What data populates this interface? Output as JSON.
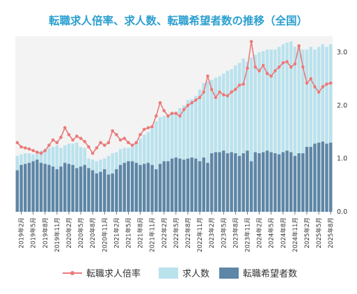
{
  "chart_data": {
    "type": "bar",
    "title": "転職求人倍率、求人数、転職希望者数の推移（全国）",
    "colors": {
      "title": "#2a9fd0",
      "plot_bg": "#f3f3f3",
      "jobs": "#b9e2ed",
      "seekers": "#5e86a6",
      "ratio": "#ea7a7a"
    },
    "y_axis": {
      "range": [
        0,
        3.3
      ],
      "ticks": [
        "0.0",
        "1.0",
        "2.0",
        "3.0"
      ],
      "tick_values": [
        0,
        1,
        2,
        3
      ]
    },
    "grid": false,
    "legend_position": "bottom",
    "x_tick_labels": [
      "2019年2月",
      "2019年5月",
      "2019年8月",
      "2019年11月",
      "2020年2月",
      "2020年5月",
      "2020年8月",
      "2020年11月",
      "2021年2月",
      "2021年5月",
      "2021年8月",
      "2021年11月",
      "2022年2月",
      "2022年5月",
      "2022年8月",
      "2022年11月",
      "2023年2月",
      "2023年5月",
      "2023年8月",
      "2023年11月",
      "2024年2月",
      "2024年5月",
      "2024年8月",
      "2024年11月",
      "2025年2月",
      "2025年5月",
      "2025年8月"
    ],
    "categories": [
      "2019年1月",
      "2019年2月",
      "2019年3月",
      "2019年4月",
      "2019年5月",
      "2019年6月",
      "2019年7月",
      "2019年8月",
      "2019年9月",
      "2019年10月",
      "2019年11月",
      "2019年12月",
      "2020年1月",
      "2020年2月",
      "2020年3月",
      "2020年4月",
      "2020年5月",
      "2020年6月",
      "2020年7月",
      "2020年8月",
      "2020年9月",
      "2020年10月",
      "2020年11月",
      "2020年12月",
      "2021年1月",
      "2021年2月",
      "2021年3月",
      "2021年4月",
      "2021年5月",
      "2021年6月",
      "2021年7月",
      "2021年8月",
      "2021年9月",
      "2021年10月",
      "2021年11月",
      "2021年12月",
      "2022年1月",
      "2022年2月",
      "2022年3月",
      "2022年4月",
      "2022年5月",
      "2022年6月",
      "2022年7月",
      "2022年8月",
      "2022年9月",
      "2022年10月",
      "2022年11月",
      "2022年12月",
      "2023年1月",
      "2023年2月",
      "2023年3月",
      "2023年4月",
      "2023年5月",
      "2023年6月",
      "2023年7月",
      "2023年8月",
      "2023年9月",
      "2023年10月",
      "2023年11月",
      "2023年12月",
      "2024年1月",
      "2024年2月",
      "2024年3月",
      "2024年4月",
      "2024年5月",
      "2024年6月",
      "2024年7月",
      "2024年8月",
      "2024年9月",
      "2024年10月",
      "2024年11月",
      "2024年12月",
      "2025年1月",
      "2025年2月",
      "2025年3月",
      "2025年4月",
      "2025年5月",
      "2025年6月",
      "2025年7月",
      "2025年8月"
    ],
    "series": [
      {
        "name": "求人数",
        "kind": "bar",
        "values": [
          1.05,
          1.08,
          1.1,
          1.1,
          1.08,
          1.12,
          1.15,
          1.18,
          1.2,
          1.22,
          1.25,
          1.2,
          1.25,
          1.28,
          1.28,
          1.3,
          1.22,
          1.2,
          1.0,
          0.98,
          0.95,
          0.98,
          1.0,
          1.05,
          1.1,
          1.12,
          1.18,
          1.2,
          1.2,
          1.22,
          1.3,
          1.38,
          1.45,
          1.5,
          1.58,
          1.7,
          1.78,
          1.8,
          1.82,
          1.85,
          1.88,
          1.95,
          2.0,
          2.1,
          2.12,
          2.18,
          2.3,
          2.42,
          2.45,
          2.48,
          2.52,
          2.55,
          2.6,
          2.65,
          2.68,
          2.75,
          2.8,
          2.88,
          2.82,
          2.9,
          2.95,
          3.0,
          3.02,
          3.05,
          3.05,
          3.05,
          3.1,
          3.15,
          3.18,
          3.2,
          3.1,
          3.1,
          3.05,
          3.05,
          3.1,
          3.05,
          3.1,
          3.15,
          3.1,
          3.15
        ]
      },
      {
        "name": "転職希望者数",
        "kind": "bar",
        "values": [
          0.78,
          0.88,
          0.9,
          0.92,
          0.95,
          0.98,
          0.92,
          0.9,
          0.88,
          0.85,
          0.8,
          0.85,
          0.92,
          0.9,
          0.88,
          0.82,
          0.85,
          0.88,
          0.82,
          0.78,
          0.72,
          0.75,
          0.8,
          0.7,
          0.72,
          0.8,
          0.88,
          0.92,
          0.95,
          0.95,
          0.92,
          0.88,
          0.9,
          0.92,
          0.88,
          0.8,
          0.9,
          0.95,
          0.95,
          1.0,
          1.02,
          1.0,
          0.98,
          1.0,
          1.02,
          1.0,
          0.95,
          1.02,
          0.92,
          1.1,
          1.12,
          1.12,
          1.15,
          1.1,
          1.12,
          1.1,
          1.05,
          1.1,
          1.15,
          0.95,
          1.12,
          1.1,
          1.12,
          1.15,
          1.12,
          1.1,
          1.08,
          1.12,
          1.15,
          1.12,
          1.05,
          1.1,
          1.1,
          1.22,
          1.22,
          1.28,
          1.3,
          1.32,
          1.28,
          1.3
        ]
      },
      {
        "name": "転職求人倍率",
        "kind": "line",
        "values": [
          1.3,
          1.22,
          1.2,
          1.18,
          1.15,
          1.12,
          1.1,
          1.15,
          1.25,
          1.35,
          1.3,
          1.4,
          1.58,
          1.45,
          1.35,
          1.42,
          1.38,
          1.32,
          1.22,
          1.1,
          1.2,
          1.3,
          1.25,
          1.3,
          1.52,
          1.45,
          1.35,
          1.38,
          1.3,
          1.25,
          1.3,
          1.45,
          1.55,
          1.58,
          1.6,
          1.8,
          2.05,
          1.9,
          1.8,
          1.85,
          1.85,
          1.8,
          1.92,
          2.0,
          2.05,
          2.1,
          2.15,
          2.25,
          2.55,
          2.3,
          2.15,
          2.25,
          2.2,
          2.18,
          2.25,
          2.3,
          2.38,
          2.4,
          2.7,
          3.2,
          2.72,
          2.65,
          2.75,
          2.6,
          2.55,
          2.65,
          2.72,
          2.8,
          2.82,
          2.72,
          2.78,
          3.12,
          2.72,
          2.42,
          2.5,
          2.35,
          2.25,
          2.35,
          2.4,
          2.42
        ]
      }
    ]
  },
  "legend": {
    "ratio_label": "転職求人倍率",
    "jobs_label": "求人数",
    "seekers_label": "転職希望者数"
  }
}
